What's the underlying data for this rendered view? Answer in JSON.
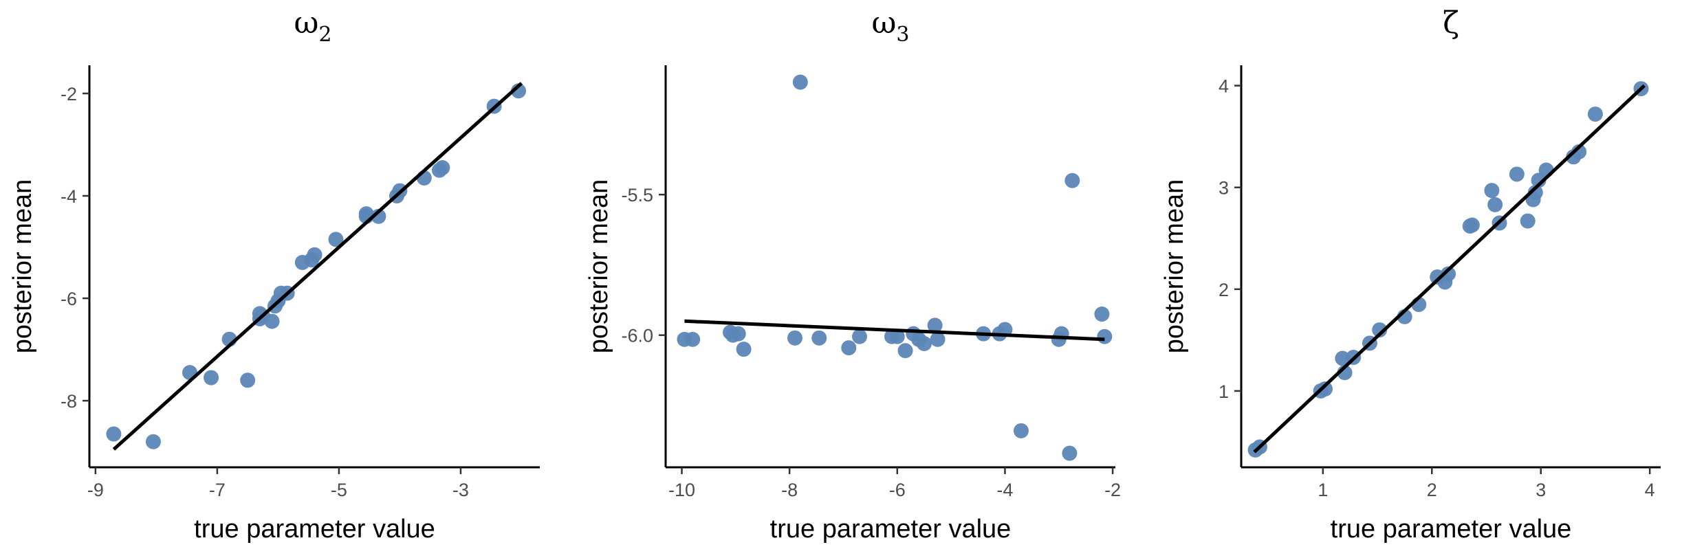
{
  "chart_data": [
    {
      "type": "scatter",
      "title": "ω",
      "title_sub": "2",
      "xlabel": "true parameter value",
      "ylabel": "posterior mean",
      "xlim": [
        -9.1,
        -1.7
      ],
      "ylim": [
        -9.3,
        -1.45
      ],
      "xticks": [
        -9,
        -7,
        -5,
        -3
      ],
      "xtick_labels": [
        "-9",
        "-7",
        "-5",
        "-3"
      ],
      "yticks": [
        -8,
        -6,
        -4,
        -2
      ],
      "ytick_labels": [
        "-8",
        "-6",
        "-4",
        "-2"
      ],
      "point_color": "#5b86b7",
      "line_color": "#000000",
      "fit_line": {
        "x": [
          -8.7,
          -2.0
        ],
        "y": [
          -8.95,
          -1.8
        ]
      },
      "x": [
        -8.7,
        -8.05,
        -7.45,
        -7.1,
        -6.8,
        -6.5,
        -6.3,
        -6.25,
        -6.3,
        -6.1,
        -6.05,
        -6.0,
        -5.95,
        -5.85,
        -5.6,
        -5.45,
        -5.4,
        -5.05,
        -4.55,
        -4.55,
        -4.35,
        -4.05,
        -4.0,
        -3.6,
        -3.35,
        -3.3,
        -2.45,
        -2.05
      ],
      "y": [
        -8.65,
        -8.8,
        -7.45,
        -7.55,
        -6.8,
        -7.6,
        -6.3,
        -6.35,
        -6.4,
        -6.45,
        -6.15,
        -6.05,
        -5.9,
        -5.9,
        -5.3,
        -5.25,
        -5.15,
        -4.85,
        -4.35,
        -4.4,
        -4.4,
        -4.0,
        -3.9,
        -3.65,
        -3.5,
        -3.45,
        -2.25,
        -1.95
      ]
    },
    {
      "type": "scatter",
      "title": "ω",
      "title_sub": "3",
      "xlabel": "true parameter value",
      "ylabel": "posterior mean",
      "xlim": [
        -10.3,
        -1.95
      ],
      "ylim": [
        -6.47,
        -5.04
      ],
      "xticks": [
        -10,
        -8,
        -6,
        -4,
        -2
      ],
      "xtick_labels": [
        "-10",
        "-8",
        "-6",
        "-4",
        "-2"
      ],
      "yticks": [
        -6.0,
        -5.5
      ],
      "ytick_labels": [
        "-6.0",
        "-5.5"
      ],
      "point_color": "#5b86b7",
      "line_color": "#000000",
      "fit_line": {
        "x": [
          -9.95,
          -2.15
        ],
        "y": [
          -5.95,
          -6.015
        ]
      },
      "x": [
        -9.95,
        -9.8,
        -9.1,
        -9.05,
        -8.95,
        -8.85,
        -7.9,
        -7.8,
        -7.45,
        -6.9,
        -6.7,
        -6.1,
        -6.0,
        -5.85,
        -5.7,
        -5.6,
        -5.5,
        -5.3,
        -5.25,
        -4.4,
        -4.1,
        -4.0,
        -3.7,
        -3.0,
        -2.95,
        -2.8,
        -2.75,
        -2.2,
        -2.15
      ],
      "y": [
        -6.015,
        -6.015,
        -5.99,
        -6.0,
        -5.995,
        -6.05,
        -6.01,
        -5.1,
        -6.01,
        -6.045,
        -6.005,
        -6.005,
        -6.005,
        -6.055,
        -5.995,
        -6.015,
        -6.03,
        -5.965,
        -6.015,
        -5.995,
        -5.995,
        -5.98,
        -6.34,
        -6.015,
        -5.995,
        -6.42,
        -5.45,
        -5.925,
        -6.005
      ]
    },
    {
      "type": "scatter",
      "title": "ζ",
      "title_sub": "",
      "xlabel": "true parameter value",
      "ylabel": "posterior mean",
      "xlim": [
        0.25,
        4.1
      ],
      "ylim": [
        0.25,
        4.2
      ],
      "xticks": [
        1,
        2,
        3,
        4
      ],
      "xtick_labels": [
        "1",
        "2",
        "3",
        "4"
      ],
      "yticks": [
        1,
        2,
        3,
        4
      ],
      "ytick_labels": [
        "1",
        "2",
        "3",
        "4"
      ],
      "point_color": "#5b86b7",
      "line_color": "#000000",
      "fit_line": {
        "x": [
          0.37,
          3.95
        ],
        "y": [
          0.4,
          4.0
        ]
      },
      "x": [
        0.38,
        0.42,
        0.98,
        1.02,
        1.18,
        1.2,
        1.28,
        1.43,
        1.52,
        1.75,
        1.88,
        2.05,
        2.12,
        2.15,
        2.35,
        2.37,
        2.55,
        2.58,
        2.62,
        2.78,
        2.88,
        2.93,
        2.95,
        2.98,
        3.05,
        3.3,
        3.35,
        3.5,
        3.92
      ],
      "y": [
        0.42,
        0.45,
        1.0,
        1.02,
        1.32,
        1.18,
        1.33,
        1.47,
        1.6,
        1.73,
        1.85,
        2.12,
        2.07,
        2.15,
        2.62,
        2.63,
        2.97,
        2.83,
        2.65,
        3.13,
        2.67,
        2.88,
        2.95,
        3.07,
        3.17,
        3.3,
        3.35,
        3.72,
        3.97
      ]
    }
  ]
}
